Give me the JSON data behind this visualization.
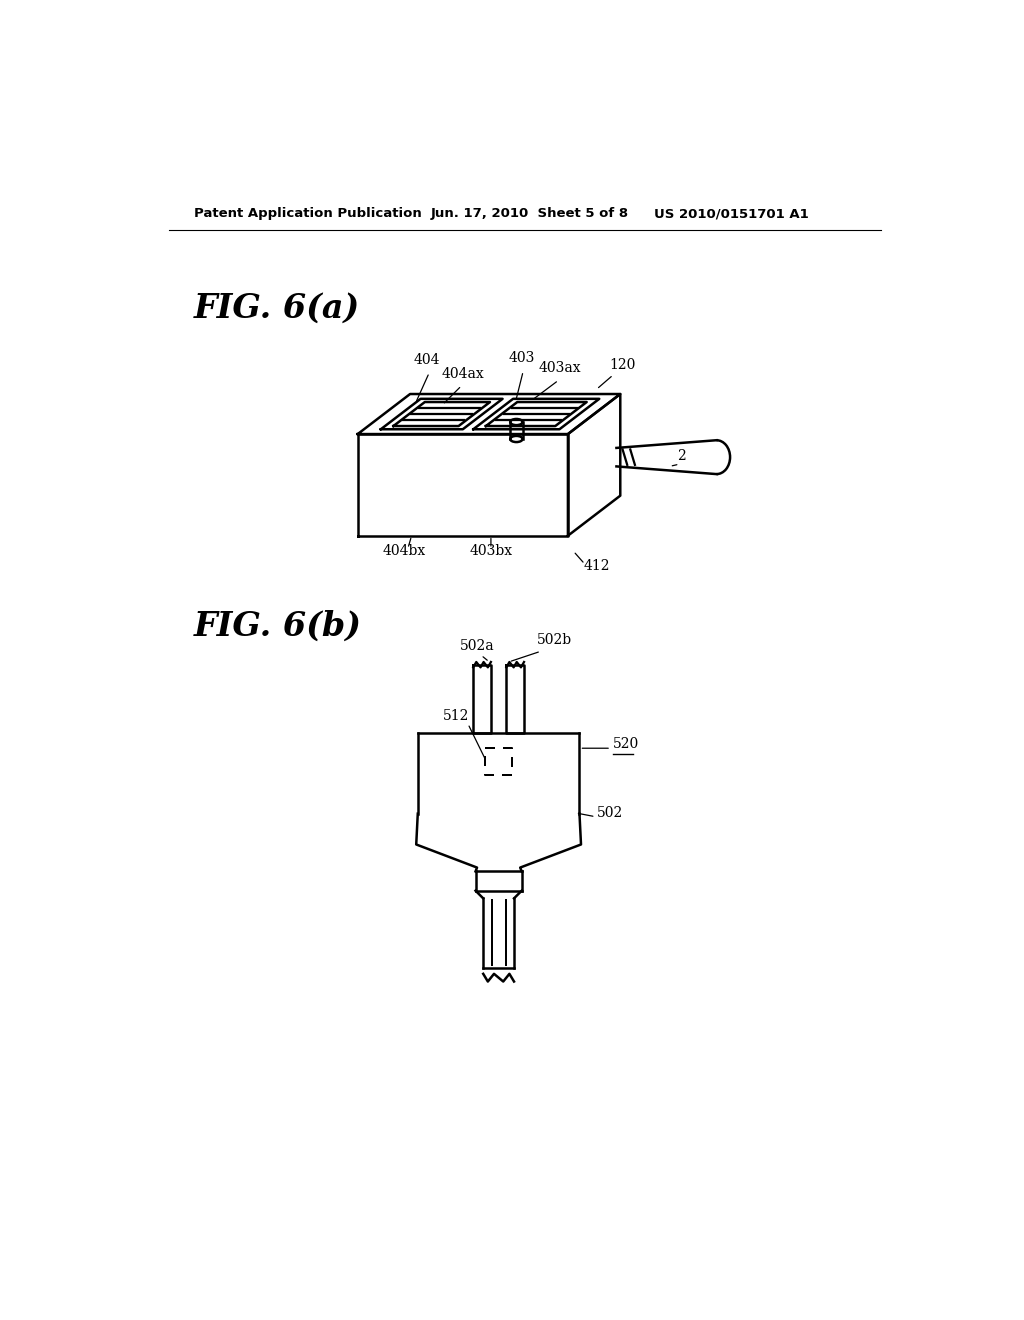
{
  "background_color": "#ffffff",
  "header_left": "Patent Application Publication",
  "header_center": "Jun. 17, 2010  Sheet 5 of 8",
  "header_right": "US 2010/0151701 A1",
  "fig_a_label": "FIG. 6(a)",
  "fig_b_label": "FIG. 6(b)",
  "line_color": "#000000",
  "line_width": 1.8
}
